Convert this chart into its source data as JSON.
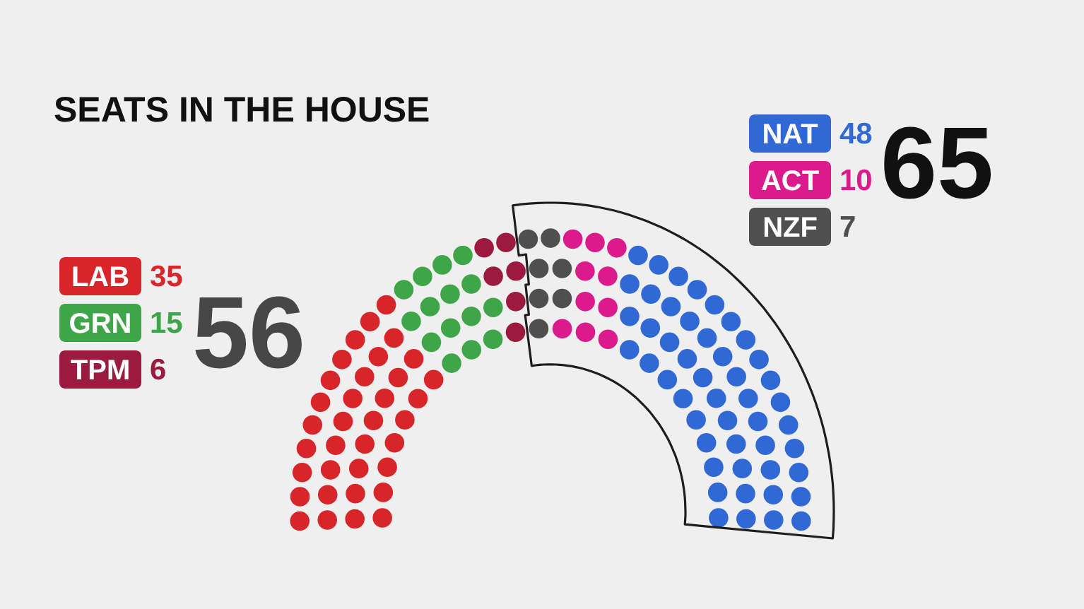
{
  "chart_data": {
    "type": "other",
    "title": "SEATS IN THE HOUSE",
    "categories": [
      "LAB",
      "GRN",
      "TPM",
      "NAT",
      "ACT",
      "NZF"
    ],
    "series": [
      {
        "values": [
          35,
          15,
          6,
          null,
          null,
          null
        ]
      },
      {
        "values": [
          null,
          null,
          null,
          48,
          10,
          7
        ]
      }
    ],
    "colors": [
      "#d8252a",
      "#3ea648",
      "#9c1a3f",
      "#3069d6",
      "#db1a8b",
      "#4f4f4f"
    ],
    "data_labels": true,
    "totals": [
      "56",
      "65"
    ]
  }
}
